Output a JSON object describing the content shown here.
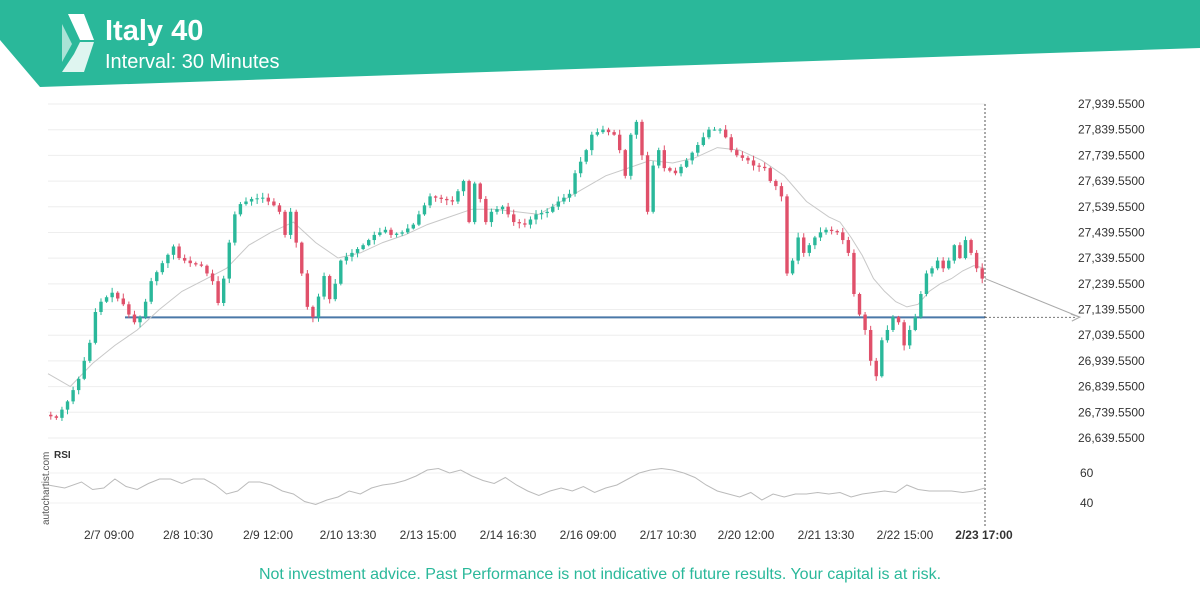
{
  "header": {
    "title": "Italy 40",
    "subtitle": "Interval: 30 Minutes",
    "accent_color": "#2ab89a",
    "logo_icon": "autochartist-logo-icon"
  },
  "watermark": "autochartist.com",
  "disclaimer": "Not investment advice. Past Performance is not indicative of future results. Your capital is at risk.",
  "chart_data": {
    "type": "candlestick",
    "y_ticks": [
      "27,939.5500",
      "27,839.5500",
      "27,739.5500",
      "27,639.5500",
      "27,539.5500",
      "27,439.5500",
      "27,339.5500",
      "27,239.5500",
      "27,139.5500",
      "27,039.5500",
      "26,939.5500",
      "26,839.5500",
      "26,739.5500",
      "26,639.5500"
    ],
    "y_tick_values": [
      27939.55,
      27839.55,
      27739.55,
      27639.55,
      27539.55,
      27439.55,
      27339.55,
      27239.55,
      27139.55,
      27039.55,
      26939.55,
      26839.55,
      26739.55,
      26639.55
    ],
    "ylim": [
      26614,
      27945
    ],
    "x_ticks": [
      "2/7 09:00",
      "2/8 10:30",
      "2/9 12:00",
      "2/10 13:30",
      "2/13 15:00",
      "2/14 16:30",
      "2/16 09:00",
      "2/17 10:30",
      "2/20 12:00",
      "2/21 13:30",
      "2/22 15:00",
      "2/23 17:00"
    ],
    "support_level": 27109,
    "price_path": [
      [
        0,
        26730
      ],
      [
        2,
        26718
      ],
      [
        4,
        26782
      ],
      [
        6,
        26870
      ],
      [
        8,
        27010
      ],
      [
        9,
        27130
      ],
      [
        10,
        27170
      ],
      [
        12,
        27205
      ],
      [
        14,
        27160
      ],
      [
        15,
        27120
      ],
      [
        16,
        27090
      ],
      [
        17,
        27110
      ],
      [
        18,
        27170
      ],
      [
        19,
        27250
      ],
      [
        21,
        27320
      ],
      [
        23,
        27385
      ],
      [
        24,
        27340
      ],
      [
        26,
        27320
      ],
      [
        28,
        27310
      ],
      [
        30,
        27250
      ],
      [
        31,
        27165
      ],
      [
        32,
        27260
      ],
      [
        33,
        27400
      ],
      [
        34,
        27510
      ],
      [
        35,
        27550
      ],
      [
        37,
        27570
      ],
      [
        39,
        27575
      ],
      [
        40,
        27560
      ],
      [
        41,
        27545
      ],
      [
        42,
        27520
      ],
      [
        43,
        27430
      ],
      [
        44,
        27520
      ],
      [
        45,
        27400
      ],
      [
        46,
        27280
      ],
      [
        47,
        27150
      ],
      [
        48,
        27110
      ],
      [
        49,
        27190
      ],
      [
        50,
        27270
      ],
      [
        51,
        27180
      ],
      [
        52,
        27240
      ],
      [
        53,
        27330
      ],
      [
        55,
        27360
      ],
      [
        57,
        27390
      ],
      [
        59,
        27430
      ],
      [
        61,
        27450
      ],
      [
        62,
        27430
      ],
      [
        64,
        27440
      ],
      [
        66,
        27470
      ],
      [
        67,
        27510
      ],
      [
        69,
        27580
      ],
      [
        71,
        27570
      ],
      [
        73,
        27560
      ],
      [
        74,
        27600
      ],
      [
        75,
        27640
      ],
      [
        76,
        27480
      ],
      [
        77,
        27630
      ],
      [
        78,
        27570
      ],
      [
        79,
        27480
      ],
      [
        80,
        27520
      ],
      [
        82,
        27540
      ],
      [
        84,
        27480
      ],
      [
        86,
        27470
      ],
      [
        88,
        27510
      ],
      [
        90,
        27520
      ],
      [
        92,
        27560
      ],
      [
        94,
        27590
      ],
      [
        95,
        27670
      ],
      [
        97,
        27760
      ],
      [
        98,
        27820
      ],
      [
        100,
        27840
      ],
      [
        102,
        27820
      ],
      [
        103,
        27760
      ],
      [
        104,
        27660
      ],
      [
        105,
        27820
      ],
      [
        106,
        27870
      ],
      [
        107,
        27740
      ],
      [
        108,
        27520
      ],
      [
        109,
        27700
      ],
      [
        110,
        27760
      ],
      [
        111,
        27690
      ],
      [
        113,
        27670
      ],
      [
        115,
        27720
      ],
      [
        117,
        27780
      ],
      [
        119,
        27840
      ],
      [
        121,
        27840
      ],
      [
        122,
        27810
      ],
      [
        123,
        27760
      ],
      [
        124,
        27740
      ],
      [
        126,
        27720
      ],
      [
        127,
        27700
      ],
      [
        129,
        27690
      ],
      [
        130,
        27640
      ],
      [
        131,
        27620
      ],
      [
        132,
        27580
      ],
      [
        133,
        27280
      ],
      [
        134,
        27330
      ],
      [
        135,
        27420
      ],
      [
        136,
        27360
      ],
      [
        137,
        27390
      ],
      [
        138,
        27420
      ],
      [
        139,
        27440
      ],
      [
        140,
        27450
      ],
      [
        142,
        27440
      ],
      [
        143,
        27410
      ],
      [
        144,
        27360
      ],
      [
        145,
        27200
      ],
      [
        146,
        27120
      ],
      [
        147,
        27060
      ],
      [
        148,
        26940
      ],
      [
        149,
        26880
      ],
      [
        150,
        27020
      ],
      [
        151,
        27060
      ],
      [
        152,
        27110
      ],
      [
        153,
        27090
      ],
      [
        154,
        27000
      ],
      [
        155,
        27060
      ],
      [
        156,
        27110
      ],
      [
        157,
        27200
      ],
      [
        158,
        27280
      ],
      [
        159,
        27300
      ],
      [
        160,
        27330
      ],
      [
        161,
        27300
      ],
      [
        162,
        27330
      ],
      [
        163,
        27390
      ],
      [
        164,
        27340
      ],
      [
        165,
        27410
      ],
      [
        166,
        27360
      ],
      [
        167,
        27300
      ],
      [
        168,
        27260
      ]
    ],
    "moving_average": [
      [
        0,
        26890
      ],
      [
        4,
        26840
      ],
      [
        8,
        26930
      ],
      [
        12,
        27000
      ],
      [
        16,
        27060
      ],
      [
        20,
        27140
      ],
      [
        24,
        27210
      ],
      [
        28,
        27255
      ],
      [
        32,
        27300
      ],
      [
        36,
        27390
      ],
      [
        40,
        27440
      ],
      [
        44,
        27480
      ],
      [
        48,
        27400
      ],
      [
        52,
        27340
      ],
      [
        56,
        27360
      ],
      [
        60,
        27400
      ],
      [
        64,
        27430
      ],
      [
        68,
        27470
      ],
      [
        72,
        27500
      ],
      [
        76,
        27530
      ],
      [
        80,
        27530
      ],
      [
        84,
        27520
      ],
      [
        88,
        27510
      ],
      [
        92,
        27560
      ],
      [
        96,
        27610
      ],
      [
        100,
        27660
      ],
      [
        104,
        27690
      ],
      [
        108,
        27720
      ],
      [
        112,
        27710
      ],
      [
        116,
        27730
      ],
      [
        120,
        27770
      ],
      [
        124,
        27760
      ],
      [
        128,
        27720
      ],
      [
        132,
        27660
      ],
      [
        136,
        27560
      ],
      [
        140,
        27500
      ],
      [
        142,
        27480
      ],
      [
        144,
        27420
      ],
      [
        146,
        27350
      ],
      [
        148,
        27260
      ],
      [
        150,
        27210
      ],
      [
        152,
        27170
      ],
      [
        154,
        27150
      ],
      [
        156,
        27160
      ],
      [
        158,
        27210
      ],
      [
        160,
        27240
      ],
      [
        162,
        27260
      ],
      [
        164,
        27290
      ],
      [
        166,
        27310
      ],
      [
        168,
        27300
      ]
    ],
    "projection": [
      [
        168,
        27260
      ],
      [
        185,
        27110
      ]
    ],
    "rsi": {
      "label": "RSI",
      "ticks": [
        "60",
        "40"
      ],
      "tick_values": [
        60,
        40
      ],
      "ylim": [
        30,
        75
      ],
      "path": [
        [
          0,
          52
        ],
        [
          3,
          50
        ],
        [
          6,
          54
        ],
        [
          8,
          49
        ],
        [
          10,
          50
        ],
        [
          12,
          56
        ],
        [
          14,
          51
        ],
        [
          16,
          49
        ],
        [
          18,
          53
        ],
        [
          20,
          56
        ],
        [
          22,
          56
        ],
        [
          24,
          53
        ],
        [
          26,
          56
        ],
        [
          28,
          56
        ],
        [
          30,
          52
        ],
        [
          32,
          46
        ],
        [
          34,
          48
        ],
        [
          36,
          54
        ],
        [
          38,
          54
        ],
        [
          40,
          52
        ],
        [
          42,
          48
        ],
        [
          44,
          46
        ],
        [
          46,
          41
        ],
        [
          48,
          39
        ],
        [
          50,
          42
        ],
        [
          52,
          44
        ],
        [
          54,
          48
        ],
        [
          56,
          46
        ],
        [
          58,
          50
        ],
        [
          60,
          52
        ],
        [
          62,
          53
        ],
        [
          64,
          55
        ],
        [
          66,
          58
        ],
        [
          68,
          62
        ],
        [
          70,
          63
        ],
        [
          72,
          60
        ],
        [
          74,
          62
        ],
        [
          76,
          58
        ],
        [
          78,
          55
        ],
        [
          80,
          53
        ],
        [
          82,
          57
        ],
        [
          84,
          52
        ],
        [
          86,
          48
        ],
        [
          88,
          45
        ],
        [
          90,
          48
        ],
        [
          92,
          50
        ],
        [
          94,
          48
        ],
        [
          96,
          51
        ],
        [
          98,
          47
        ],
        [
          100,
          50
        ],
        [
          102,
          52
        ],
        [
          104,
          56
        ],
        [
          106,
          60
        ],
        [
          108,
          62
        ],
        [
          110,
          63
        ],
        [
          112,
          62
        ],
        [
          114,
          60
        ],
        [
          116,
          57
        ],
        [
          118,
          52
        ],
        [
          120,
          48
        ],
        [
          122,
          46
        ],
        [
          124,
          44
        ],
        [
          126,
          47
        ],
        [
          128,
          42
        ],
        [
          130,
          46
        ],
        [
          132,
          44
        ],
        [
          134,
          46
        ],
        [
          136,
          46
        ],
        [
          138,
          47
        ],
        [
          140,
          46
        ],
        [
          142,
          47
        ],
        [
          144,
          44
        ],
        [
          146,
          46
        ],
        [
          148,
          47
        ],
        [
          150,
          48
        ],
        [
          152,
          47
        ],
        [
          154,
          52
        ],
        [
          156,
          49
        ],
        [
          158,
          48
        ],
        [
          160,
          48
        ],
        [
          162,
          48
        ],
        [
          164,
          47
        ],
        [
          166,
          48
        ],
        [
          168,
          50
        ]
      ]
    }
  }
}
